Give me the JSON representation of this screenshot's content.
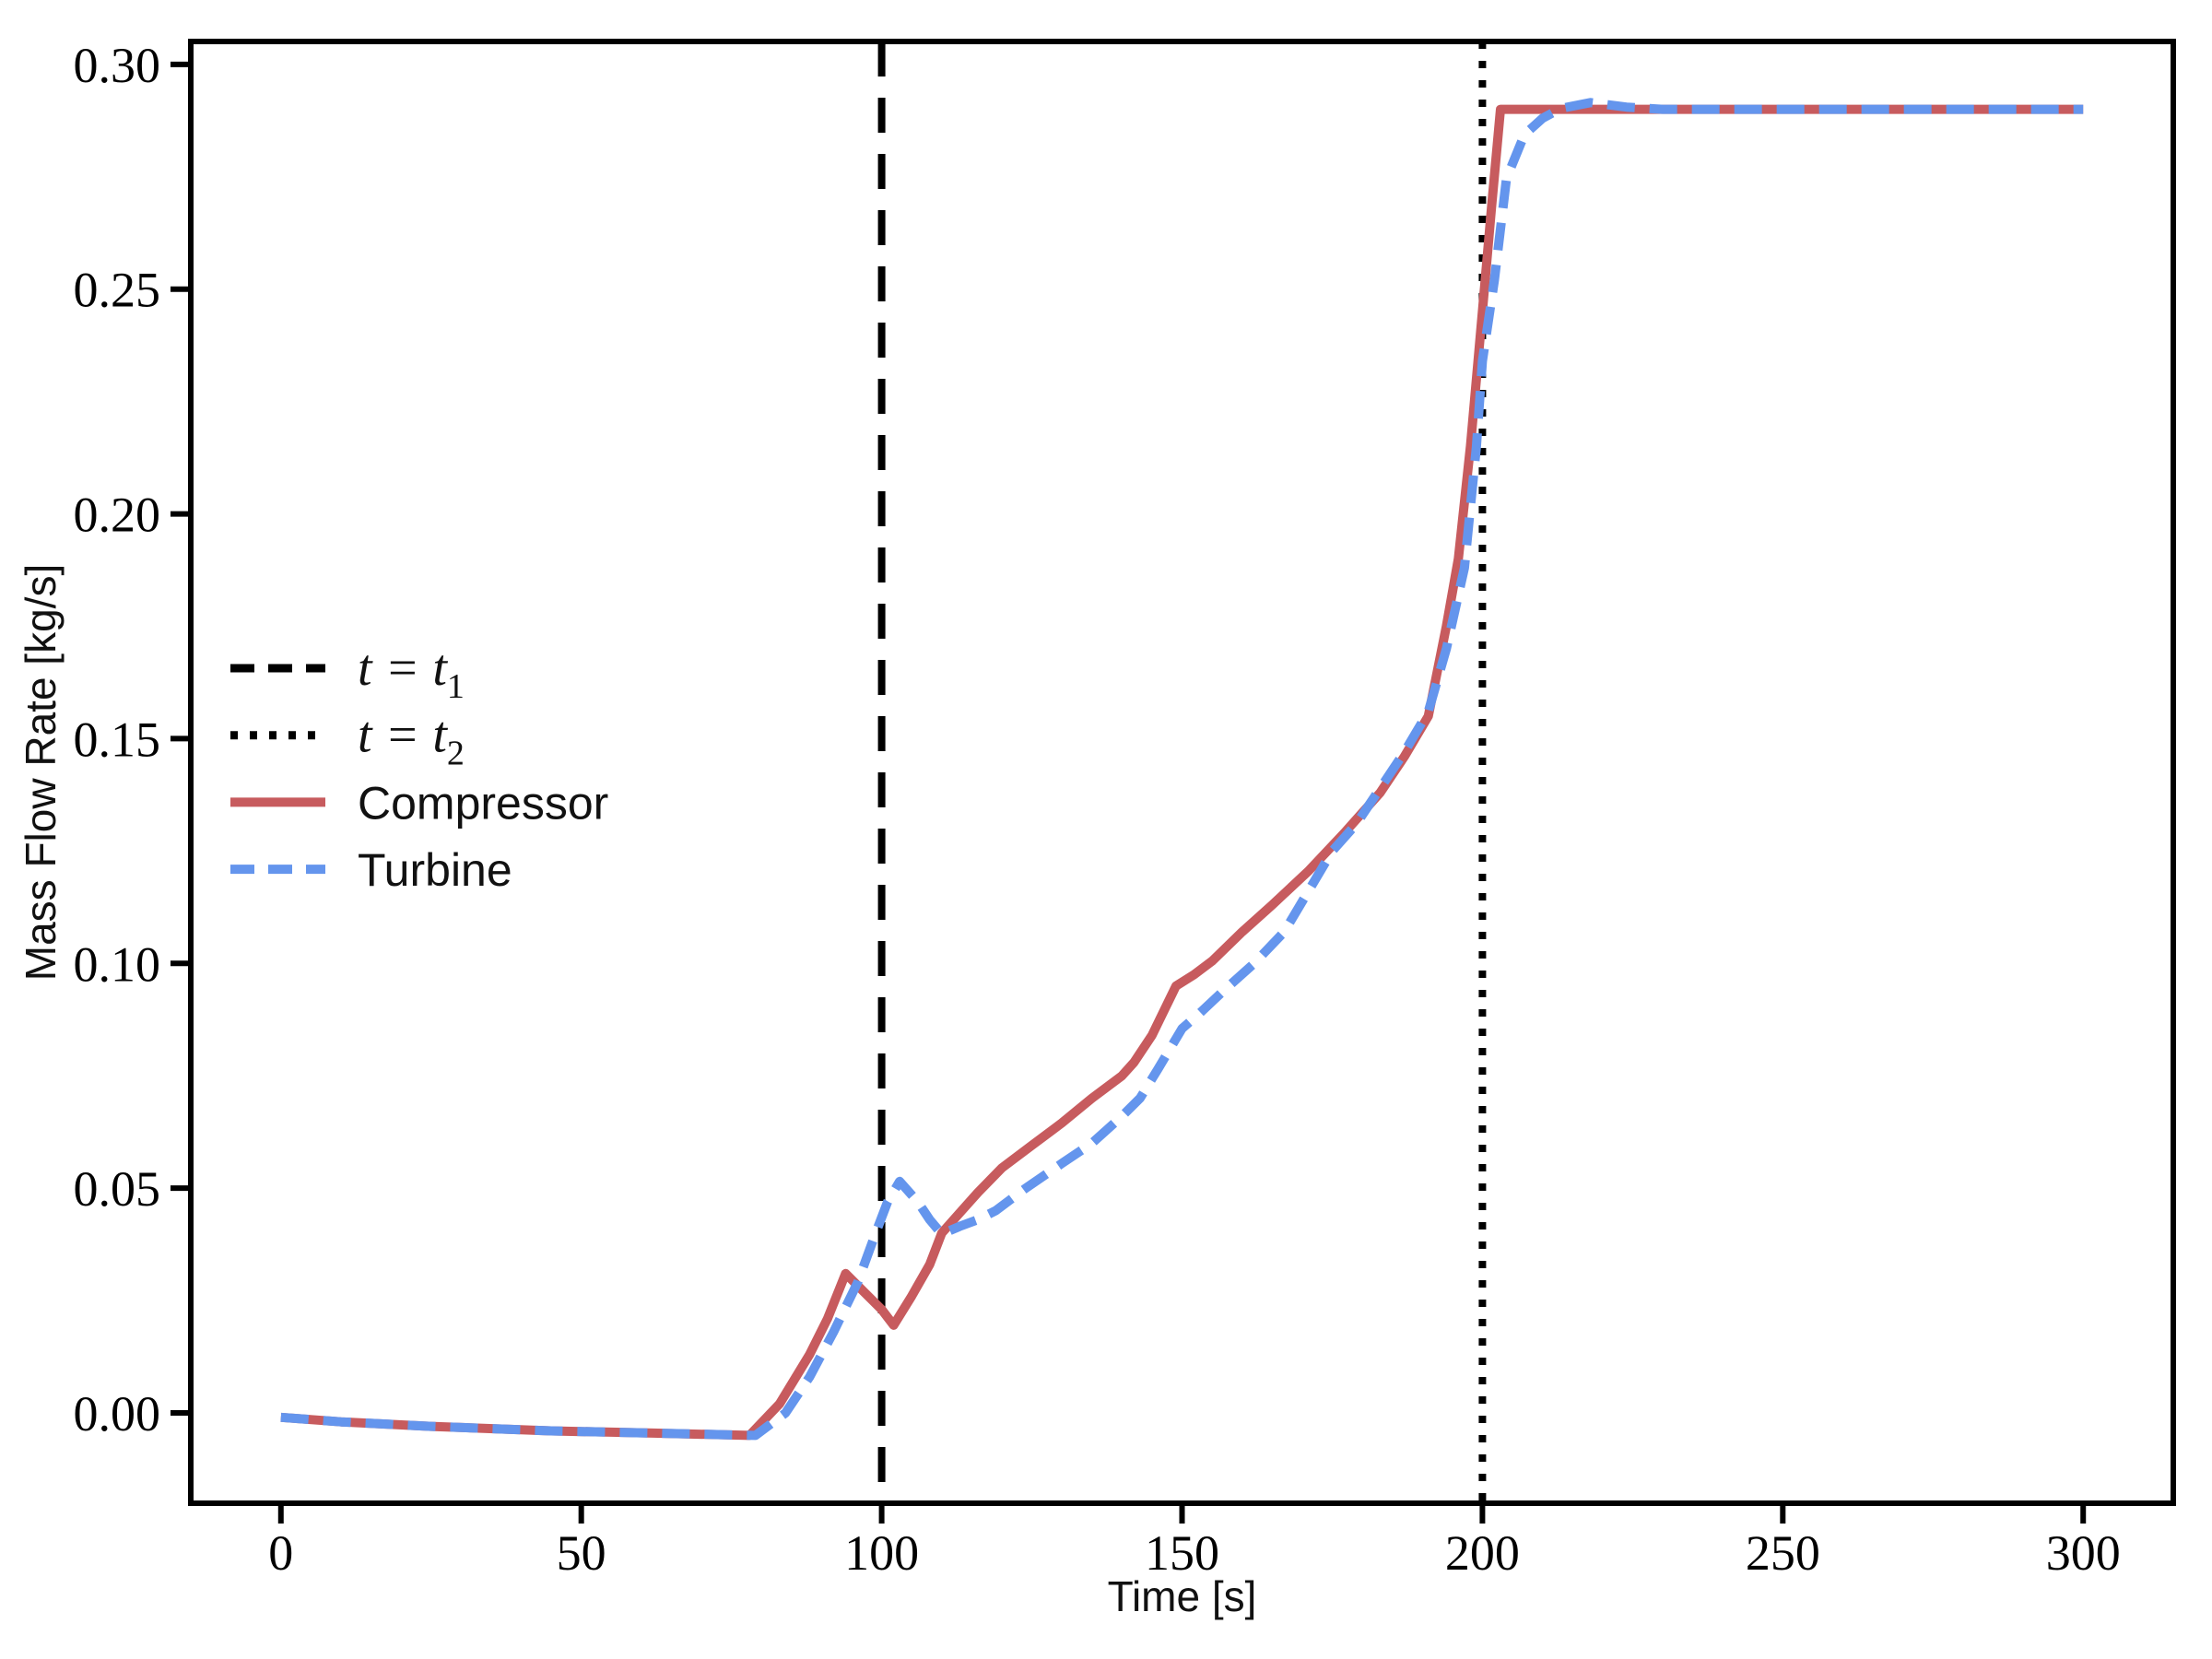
{
  "chart_data": {
    "type": "line",
    "title": "",
    "xlabel": "Time [s]",
    "ylabel": "Mass Flow Rate [kg/s]",
    "xlim": [
      -15,
      315
    ],
    "ylim": [
      -0.0201,
      0.3051
    ],
    "grid": false,
    "x_ticks": [
      0,
      50,
      100,
      150,
      200,
      250,
      300
    ],
    "x_tick_labels": [
      "0",
      "50",
      "100",
      "150",
      "200",
      "250",
      "300"
    ],
    "y_ticks": [
      0.0,
      0.05,
      0.1,
      0.15,
      0.2,
      0.25,
      0.3
    ],
    "y_tick_labels": [
      "0.00",
      "0.05",
      "0.10",
      "0.15",
      "0.20",
      "0.25",
      "0.30"
    ],
    "axis_color": "#000000",
    "vlines": [
      {
        "name": "t1",
        "x": 100,
        "style": "dashed",
        "color": "#000000",
        "label": "t = t1"
      },
      {
        "name": "t2",
        "x": 200,
        "style": "dotted",
        "color": "#000000",
        "label": "t = t2"
      }
    ],
    "series": [
      {
        "name": "Compressor",
        "color": "#c75b5e",
        "style": "solid",
        "points": [
          [
            0,
            -0.001
          ],
          [
            10,
            -0.002
          ],
          [
            25,
            -0.003
          ],
          [
            45,
            -0.004
          ],
          [
            62,
            -0.0045
          ],
          [
            78,
            -0.005
          ],
          [
            83,
            0.002
          ],
          [
            88,
            0.013
          ],
          [
            91,
            0.021
          ],
          [
            94,
            0.031
          ],
          [
            97,
            0.027
          ],
          [
            100,
            0.023
          ],
          [
            102,
            0.0195
          ],
          [
            105,
            0.026
          ],
          [
            108,
            0.033
          ],
          [
            110,
            0.04
          ],
          [
            113,
            0.0445
          ],
          [
            116,
            0.049
          ],
          [
            120,
            0.0545
          ],
          [
            125,
            0.0595
          ],
          [
            130,
            0.0645
          ],
          [
            135,
            0.07
          ],
          [
            140,
            0.075
          ],
          [
            142,
            0.078
          ],
          [
            145,
            0.084
          ],
          [
            149,
            0.095
          ],
          [
            152,
            0.0975
          ],
          [
            155,
            0.1005
          ],
          [
            160,
            0.107
          ],
          [
            165,
            0.113
          ],
          [
            171,
            0.1205
          ],
          [
            177,
            0.129
          ],
          [
            183,
            0.138
          ],
          [
            187,
            0.146
          ],
          [
            191,
            0.155
          ],
          [
            194,
            0.175
          ],
          [
            196,
            0.19
          ],
          [
            198,
            0.215
          ],
          [
            200,
            0.245
          ],
          [
            201.5,
            0.268
          ],
          [
            203,
            0.29
          ],
          [
            210,
            0.29
          ],
          [
            250,
            0.29
          ],
          [
            300,
            0.29
          ]
        ]
      },
      {
        "name": "Turbine",
        "color": "#6495ed",
        "style": "dashed",
        "points": [
          [
            0,
            -0.001
          ],
          [
            10,
            -0.002
          ],
          [
            25,
            -0.003
          ],
          [
            45,
            -0.004
          ],
          [
            62,
            -0.0045
          ],
          [
            79,
            -0.005
          ],
          [
            84,
            0.0
          ],
          [
            88,
            0.008
          ],
          [
            92,
            0.018
          ],
          [
            96,
            0.029
          ],
          [
            99,
            0.04
          ],
          [
            101,
            0.047
          ],
          [
            103,
            0.0515
          ],
          [
            106,
            0.047
          ],
          [
            108,
            0.043
          ],
          [
            110,
            0.0398
          ],
          [
            113,
            0.0415
          ],
          [
            116,
            0.043
          ],
          [
            119,
            0.045
          ],
          [
            124,
            0.05
          ],
          [
            130,
            0.0555
          ],
          [
            135,
            0.06
          ],
          [
            140,
            0.066
          ],
          [
            143,
            0.07
          ],
          [
            146,
            0.0765
          ],
          [
            150,
            0.0855
          ],
          [
            153,
            0.089
          ],
          [
            157,
            0.094
          ],
          [
            162,
            0.1
          ],
          [
            167,
            0.107
          ],
          [
            171,
            0.116
          ],
          [
            175,
            0.125
          ],
          [
            179,
            0.131
          ],
          [
            183,
            0.139
          ],
          [
            187,
            0.147
          ],
          [
            191,
            0.156
          ],
          [
            194,
            0.17
          ],
          [
            197,
            0.188
          ],
          [
            199,
            0.215
          ],
          [
            200,
            0.234
          ],
          [
            202,
            0.252
          ],
          [
            204,
            0.2746
          ],
          [
            207,
            0.2844
          ],
          [
            210,
            0.288
          ],
          [
            213,
            0.2902
          ],
          [
            218,
            0.2915
          ],
          [
            224,
            0.2905
          ],
          [
            230,
            0.29
          ],
          [
            260,
            0.29
          ],
          [
            300,
            0.29
          ]
        ]
      }
    ],
    "legend": {
      "location": "center left",
      "frame": false,
      "entries": [
        {
          "name": "t1",
          "label": "t = t1",
          "base": "t = t",
          "sub": "1",
          "math": true,
          "style": "dashed",
          "color": "#000000"
        },
        {
          "name": "t2",
          "label": "t = t2",
          "base": "t = t",
          "sub": "2",
          "math": true,
          "style": "dotted",
          "color": "#000000"
        },
        {
          "name": "compressor",
          "label": "Compressor",
          "math": false,
          "style": "solid",
          "color": "#c75b5e"
        },
        {
          "name": "turbine",
          "label": "Turbine",
          "math": false,
          "style": "dashed",
          "color": "#6495ed"
        }
      ]
    }
  }
}
